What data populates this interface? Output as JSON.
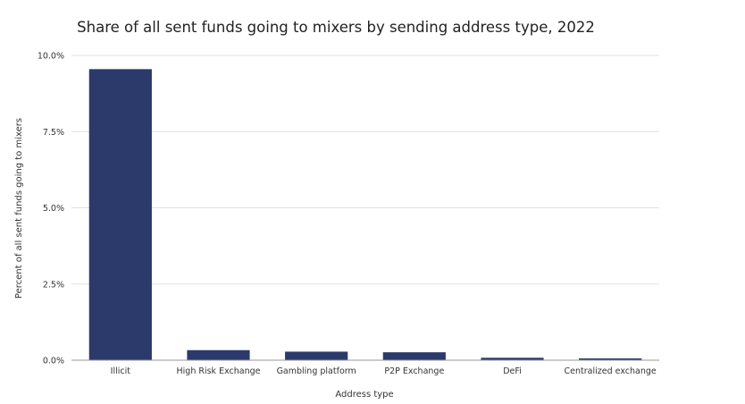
{
  "chart_data": {
    "type": "bar",
    "title": "Share of all sent funds going to mixers by sending address type, 2022",
    "xlabel": "Address type",
    "ylabel": "Percent of all sent funds going to mixers",
    "categories": [
      "Illicit",
      "High Risk Exchange",
      "Gambling platform",
      "P2P Exchange",
      "DeFi",
      "Centralized exchange"
    ],
    "values": [
      9.55,
      0.33,
      0.28,
      0.26,
      0.08,
      0.06
    ],
    "ylim": [
      0,
      10
    ],
    "yticks": [
      0,
      2.5,
      5,
      7.5,
      10
    ],
    "ytick_labels": [
      "0.0%",
      "2.5%",
      "5.0%",
      "7.5%",
      "10.0%"
    ],
    "grid": true,
    "legend": "none",
    "bar_color": "#2b3a6b"
  }
}
